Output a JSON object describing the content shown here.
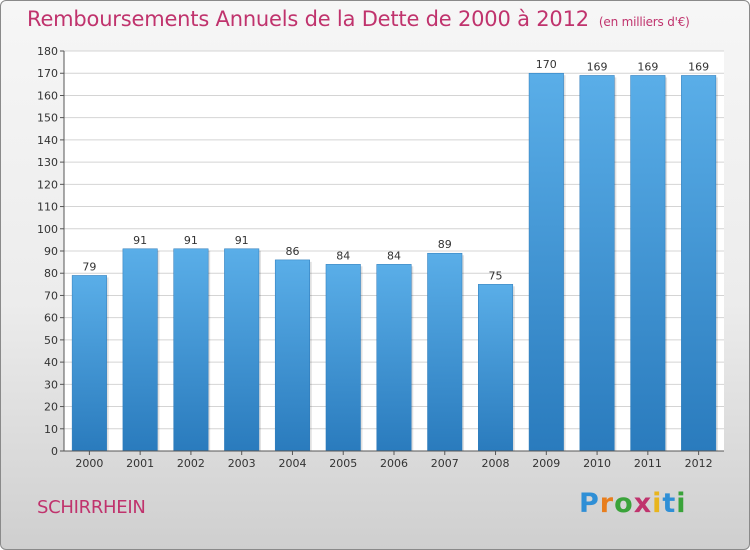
{
  "header": {
    "title": "Remboursements Annuels de la Dette de 2000 à 2012",
    "unit": "(en milliers d'€)"
  },
  "footer": {
    "commune": "SCHIRRHEIN",
    "logo": "Proxiti"
  },
  "colors": {
    "title": "#c0336d",
    "bar_top": "#5aaee8",
    "bar_bottom": "#2a7bbd",
    "grid": "#d4d4d4"
  },
  "chart_data": {
    "type": "bar",
    "categories": [
      "2000",
      "2001",
      "2002",
      "2003",
      "2004",
      "2005",
      "2006",
      "2007",
      "2008",
      "2009",
      "2010",
      "2011",
      "2012"
    ],
    "values": [
      79,
      91,
      91,
      91,
      86,
      84,
      84,
      89,
      75,
      170,
      169,
      169,
      169
    ],
    "title": "Remboursements Annuels de la Dette de 2000 à 2012",
    "subtitle": "(en milliers d'€)",
    "ylim": [
      0,
      180
    ],
    "yticks": [
      0,
      10,
      20,
      30,
      40,
      50,
      60,
      70,
      80,
      90,
      100,
      110,
      120,
      130,
      140,
      150,
      160,
      170,
      180
    ],
    "grid": true,
    "show_data_labels": true
  }
}
